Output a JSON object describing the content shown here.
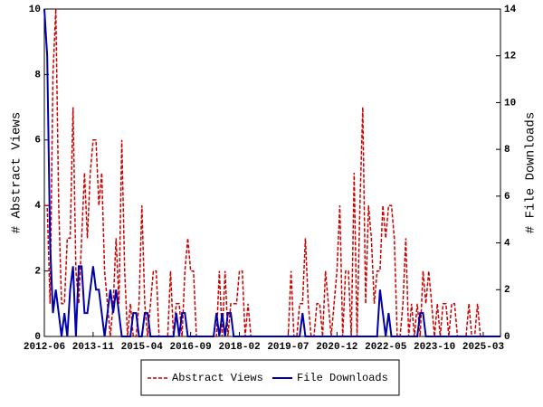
{
  "chart_data": {
    "type": "line",
    "x": [
      "2012-06",
      "2012-07",
      "2012-08",
      "2012-09",
      "2012-10",
      "2012-11",
      "2012-12",
      "2013-01",
      "2013-02",
      "2013-03",
      "2013-04",
      "2013-05",
      "2013-06",
      "2013-07",
      "2013-08",
      "2013-09",
      "2013-10",
      "2013-11",
      "2013-12",
      "2014-01",
      "2014-02",
      "2014-03",
      "2014-04",
      "2014-05",
      "2014-06",
      "2014-07",
      "2014-08",
      "2014-09",
      "2014-10",
      "2014-11",
      "2014-12",
      "2015-01",
      "2015-02",
      "2015-03",
      "2015-04",
      "2015-05",
      "2015-06",
      "2015-07",
      "2015-08",
      "2015-09",
      "2015-10",
      "2015-11",
      "2015-12",
      "2016-01",
      "2016-02",
      "2016-03",
      "2016-04",
      "2016-05",
      "2016-06",
      "2016-07",
      "2016-08",
      "2016-09",
      "2016-10",
      "2016-11",
      "2016-12",
      "2017-01",
      "2017-02",
      "2017-03",
      "2017-04",
      "2017-05",
      "2017-06",
      "2017-07",
      "2017-08",
      "2017-09",
      "2017-10",
      "2017-11",
      "2017-12",
      "2018-01",
      "2018-02",
      "2018-03",
      "2018-04",
      "2018-05",
      "2018-06",
      "2018-07",
      "2018-08",
      "2018-09",
      "2018-10",
      "2018-11",
      "2018-12",
      "2019-01",
      "2019-02",
      "2019-03",
      "2019-04",
      "2019-05",
      "2019-06",
      "2019-07",
      "2019-08",
      "2019-09",
      "2019-10",
      "2019-11",
      "2019-12",
      "2020-01",
      "2020-02",
      "2020-03",
      "2020-04",
      "2020-05",
      "2020-06",
      "2020-07",
      "2020-08",
      "2020-09",
      "2020-10",
      "2020-11",
      "2020-12",
      "2021-01",
      "2021-02",
      "2021-03",
      "2021-04",
      "2021-05",
      "2021-06",
      "2021-07",
      "2021-08",
      "2021-09",
      "2021-10",
      "2021-11",
      "2021-12",
      "2022-01",
      "2022-02",
      "2022-03",
      "2022-04",
      "2022-05",
      "2022-06",
      "2022-07",
      "2022-08",
      "2022-09",
      "2022-10",
      "2022-11",
      "2022-12",
      "2023-01",
      "2023-02",
      "2023-03",
      "2023-04",
      "2023-05",
      "2023-06",
      "2023-07",
      "2023-08",
      "2023-09",
      "2023-10",
      "2023-11",
      "2023-12",
      "2024-01",
      "2024-02",
      "2024-03",
      "2024-04",
      "2024-05",
      "2024-06",
      "2024-07",
      "2024-08",
      "2024-09",
      "2024-10",
      "2024-11",
      "2024-12",
      "2025-01",
      "2025-02",
      "2025-03",
      "2025-04",
      "2025-05",
      "2025-06",
      "2025-07",
      "2025-08",
      "2025-09"
    ],
    "xticks": [
      "2012-06",
      "2013-11",
      "2015-04",
      "2016-09",
      "2018-02",
      "2019-07",
      "2020-12",
      "2022-05",
      "2023-10",
      "2025-03"
    ],
    "ylabel": "# Abstract Views",
    "y2label": "# File Downloads",
    "ylim": [
      0,
      10
    ],
    "yticks": [
      0,
      2,
      4,
      6,
      8,
      10
    ],
    "y2lim": [
      0,
      14
    ],
    "y2ticks": [
      0,
      2,
      4,
      6,
      8,
      10,
      12,
      14
    ],
    "legend": "bottom",
    "series": [
      {
        "name": "Abstract Views",
        "color": "#cc0000",
        "dash": true,
        "axis": "y",
        "values": [
          4,
          4,
          1,
          8,
          10,
          4,
          1,
          1,
          3,
          3,
          7,
          2,
          1,
          3,
          5,
          3,
          5,
          6,
          6,
          4,
          5,
          2,
          1,
          0,
          1,
          3,
          1,
          6,
          2,
          0,
          1,
          0,
          0,
          1,
          4,
          1,
          0,
          1,
          2,
          2,
          0,
          0,
          0,
          0,
          2,
          0,
          1,
          1,
          0,
          2,
          3,
          2,
          2,
          0,
          0,
          0,
          0,
          0,
          0,
          0,
          0,
          2,
          0,
          2,
          0,
          1,
          1,
          1,
          2,
          2,
          0,
          1,
          0,
          0,
          0,
          0,
          0,
          0,
          0,
          0,
          0,
          0,
          0,
          0,
          0,
          0,
          2,
          0,
          0,
          1,
          1,
          3,
          1,
          0,
          0,
          1,
          1,
          0,
          2,
          1,
          0,
          1,
          2,
          4,
          0,
          2,
          2,
          0,
          5,
          0,
          4,
          7,
          1,
          4,
          3,
          1,
          2,
          2,
          4,
          3,
          4,
          4,
          3,
          0,
          0,
          1,
          3,
          0,
          1,
          0,
          1,
          0,
          2,
          1,
          2,
          1,
          0,
          1,
          0,
          1,
          1,
          0,
          1,
          1,
          0,
          0,
          0,
          0,
          1,
          0,
          0,
          1,
          0,
          0,
          0,
          0,
          0,
          0,
          0,
          0
        ]
      },
      {
        "name": "File Downloads",
        "color": "#0000aa",
        "dash": false,
        "axis": "y2",
        "values": [
          14,
          12,
          4,
          1,
          2,
          1,
          0,
          1,
          0,
          2,
          3,
          0,
          3,
          3,
          1,
          1,
          2,
          3,
          2,
          2,
          1,
          0,
          1,
          2,
          1,
          2,
          1,
          0,
          0,
          0,
          0,
          1,
          1,
          0,
          0,
          1,
          1,
          0,
          0,
          0,
          0,
          0,
          0,
          0,
          0,
          0,
          1,
          0,
          1,
          1,
          0,
          0,
          0,
          0,
          0,
          0,
          0,
          0,
          0,
          0,
          1,
          0,
          1,
          0,
          1,
          1,
          0,
          0,
          0,
          0,
          0,
          0,
          0,
          0,
          0,
          0,
          0,
          0,
          0,
          0,
          0,
          0,
          0,
          0,
          0,
          0,
          0,
          0,
          0,
          0,
          1,
          0,
          0,
          0,
          0,
          0,
          0,
          0,
          0,
          0,
          0,
          0,
          0,
          0,
          0,
          0,
          0,
          0,
          0,
          0,
          0,
          0,
          0,
          0,
          0,
          0,
          0,
          2,
          1,
          0,
          1,
          0,
          0,
          0,
          0,
          0,
          0,
          0,
          0,
          0,
          0,
          1,
          1,
          0,
          0,
          0,
          0,
          0,
          0,
          0,
          0,
          0,
          0,
          0,
          0,
          0,
          0,
          0,
          0,
          0,
          0,
          0,
          0,
          0,
          0,
          0,
          0,
          0,
          0,
          0
        ]
      }
    ]
  }
}
